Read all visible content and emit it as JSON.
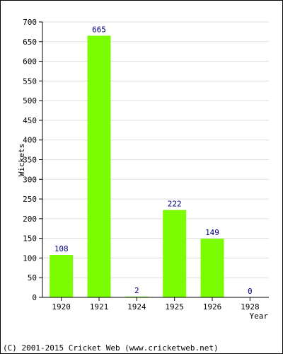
{
  "chart_data": {
    "type": "bar",
    "title": "",
    "xlabel": "Year",
    "ylabel": "Wickets",
    "categories": [
      "1920",
      "1921",
      "1924",
      "1925",
      "1926",
      "1928"
    ],
    "values": [
      108,
      665,
      2,
      222,
      149,
      0
    ],
    "data_labels": [
      "108",
      "665",
      "2",
      "222",
      "149",
      "0"
    ],
    "ylim": [
      0,
      700
    ],
    "yticks": [
      0,
      50,
      100,
      150,
      200,
      250,
      300,
      350,
      400,
      450,
      500,
      550,
      600,
      650,
      700
    ],
    "grid": "horizontal",
    "legend": "none"
  },
  "colors": {
    "bar": "#7cfc00",
    "data_label": "#000080",
    "grid": "#dddddd",
    "axis": "#000000"
  },
  "footer": "(C) 2001-2015 Cricket Web (www.cricketweb.net)"
}
